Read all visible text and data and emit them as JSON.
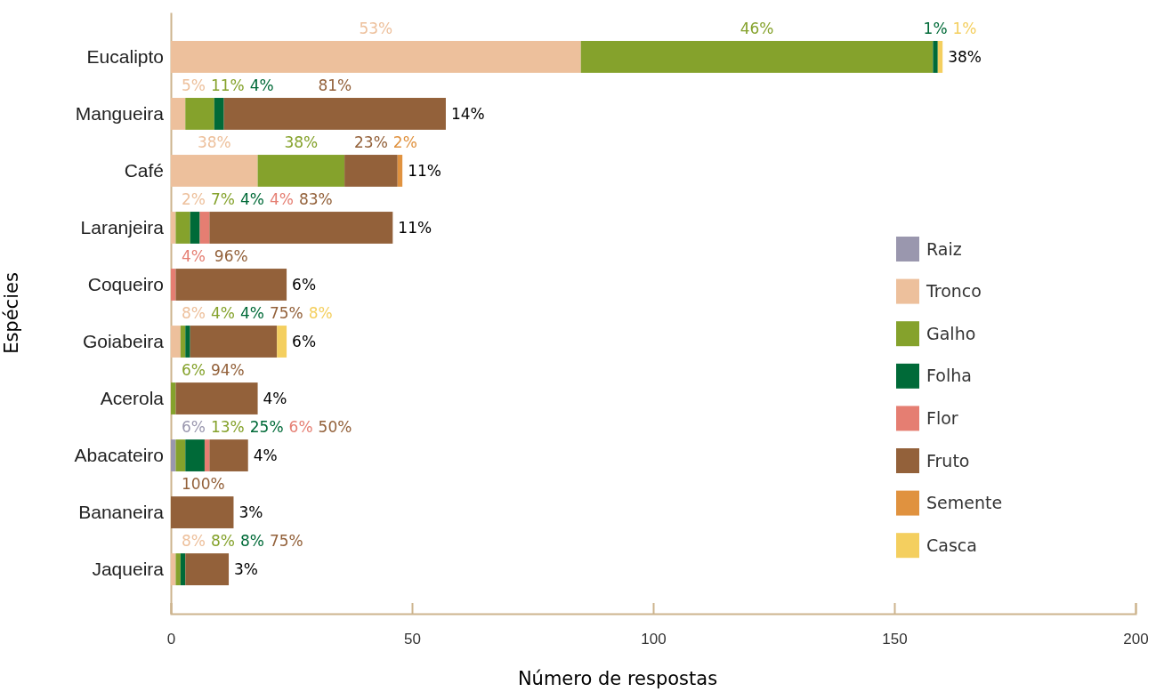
{
  "chart_data": {
    "type": "bar",
    "orientation": "horizontal",
    "stacked": true,
    "xlabel": "Número de respostas",
    "ylabel": "Espécies",
    "categories": [
      "Eucalipto",
      "Mangueira",
      "Café",
      "Laranjeira",
      "Coqueiro",
      "Goiabeira",
      "Acerola",
      "Abacateiro",
      "Bananeira",
      "Jaqueira"
    ],
    "xlim": [
      0,
      200
    ],
    "xticks": [
      0,
      50,
      100,
      150,
      200
    ],
    "legend": "right",
    "grid": false,
    "series": [
      {
        "name": "Raiz",
        "color": "#9a97ae",
        "values": [
          null,
          null,
          null,
          null,
          null,
          null,
          null,
          1,
          null,
          null
        ]
      },
      {
        "name": "Tronco",
        "color": "#edc09c",
        "values": [
          85,
          3,
          18,
          1,
          null,
          2,
          null,
          null,
          null,
          1
        ]
      },
      {
        "name": "Galho",
        "color": "#85a22c",
        "values": [
          73,
          6,
          18,
          3,
          null,
          1,
          1,
          2,
          null,
          1
        ]
      },
      {
        "name": "Folha",
        "color": "#006a38",
        "values": [
          1,
          2,
          null,
          2,
          null,
          1,
          null,
          4,
          null,
          1
        ]
      },
      {
        "name": "Flor",
        "color": "#e57e72",
        "values": [
          null,
          null,
          null,
          2,
          1,
          null,
          null,
          1,
          null,
          null
        ]
      },
      {
        "name": "Fruto",
        "color": "#93613a",
        "values": [
          null,
          46,
          11,
          38,
          23,
          18,
          17,
          8,
          13,
          9
        ]
      },
      {
        "name": "Semente",
        "color": "#e0923f",
        "values": [
          null,
          null,
          1,
          null,
          null,
          null,
          null,
          null,
          null,
          null
        ]
      },
      {
        "name": "Casca",
        "color": "#f4cf5f",
        "values": [
          1,
          null,
          null,
          null,
          null,
          2,
          null,
          null,
          null,
          null
        ]
      }
    ],
    "annotations": [
      "53%",
      "46%",
      "1%",
      "1%",
      "38%",
      "5%",
      "11%",
      "4%",
      "81%",
      "14%",
      "38%",
      "38%",
      "23%",
      "2%",
      "11%",
      "2%",
      "7%",
      "4%",
      "4%",
      "83%",
      "11%",
      "4%",
      "96%",
      "6%",
      "8%",
      "4%",
      "4%",
      "75%",
      "8%",
      "6%",
      "6%",
      "94%",
      "4%",
      "6%",
      "13%",
      "25%",
      "6%",
      "50%",
      "4%",
      "100%",
      "3%",
      "8%",
      "8%",
      "8%",
      "75%",
      "3%"
    ]
  }
}
